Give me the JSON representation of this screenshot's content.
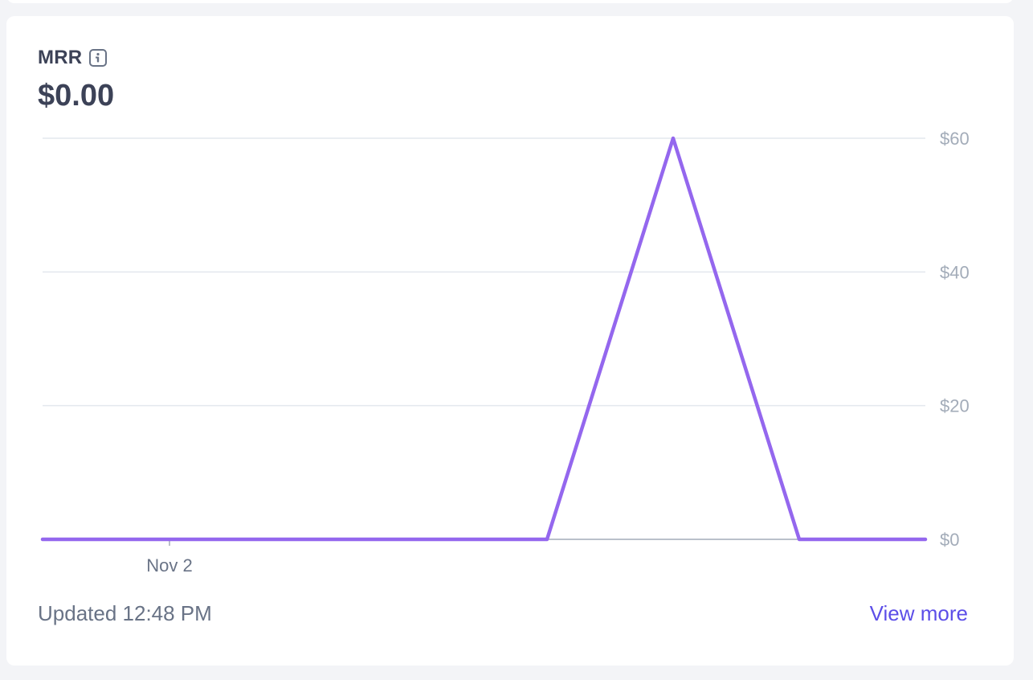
{
  "card": {
    "title": "MRR",
    "info_icon": "info-icon",
    "value": "$0.00",
    "updated": "Updated 12:48 PM",
    "view_more": "View more"
  },
  "colors": {
    "line": "#9467ee",
    "grid": "#e3e8ee",
    "baseline": "#a3acb9",
    "tick_text": "#a3acb9",
    "x_tick_text": "#697386",
    "link": "#5c4ee8"
  },
  "chart_data": {
    "type": "line",
    "x_tick_labels": [
      "Nov 2"
    ],
    "y_ticks": [
      "$0",
      "$20",
      "$40",
      "$60"
    ],
    "y_tick_values": [
      0,
      20,
      40,
      60
    ],
    "ylim": [
      0,
      60
    ],
    "grid": true,
    "y_axis_position": "right",
    "series": [
      {
        "values": [
          0,
          0,
          0,
          0,
          0,
          60,
          0,
          0
        ]
      }
    ]
  }
}
